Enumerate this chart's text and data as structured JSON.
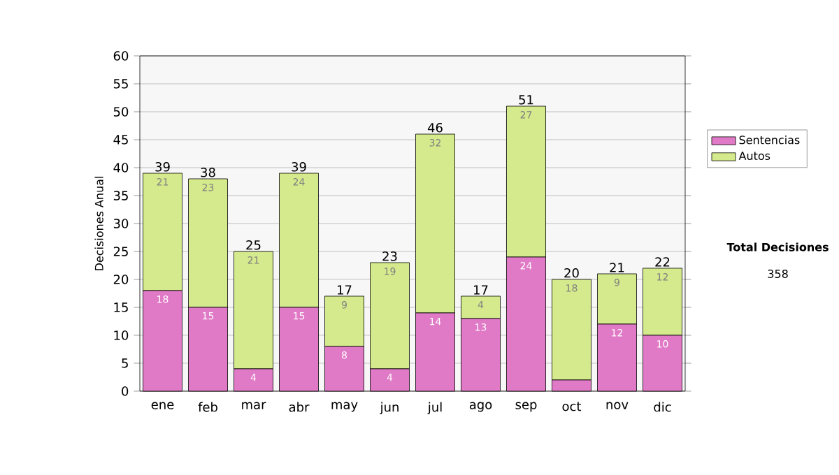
{
  "chart_data": {
    "type": "bar",
    "stacked": true,
    "ylabel": "Decisiones Anual",
    "categories": [
      "ene",
      "feb",
      "mar",
      "abr",
      "may",
      "jun",
      "jul",
      "ago",
      "sep",
      "oct",
      "nov",
      "dic"
    ],
    "series": [
      {
        "name": "Sentencias",
        "color": "#e07ac6",
        "values": [
          18,
          15,
          4,
          15,
          8,
          4,
          14,
          13,
          24,
          2,
          12,
          10
        ],
        "value_labels": [
          "18",
          "15",
          "4",
          "15",
          "8",
          "4",
          "14",
          "13",
          "24",
          null,
          "12",
          "10"
        ]
      },
      {
        "name": "Autos",
        "color": "#d4ea8c",
        "values": [
          21,
          23,
          21,
          24,
          9,
          19,
          32,
          4,
          27,
          18,
          9,
          12
        ],
        "value_labels": [
          "21",
          "23",
          "21",
          "24",
          "9",
          "19",
          "32",
          "4",
          "27",
          "18",
          "9",
          "12"
        ]
      }
    ],
    "totals": [
      "39",
      "38",
      "25",
      "39",
      "17",
      "23",
      "46",
      "17",
      "51",
      "20",
      "21",
      "22"
    ],
    "ylim": [
      0,
      60
    ],
    "yticks": [
      0,
      5,
      10,
      15,
      20,
      25,
      30,
      35,
      40,
      45,
      50,
      55,
      60
    ],
    "grid": "y",
    "legend": "right",
    "annotations": [
      "Total Decisiones",
      "358"
    ]
  }
}
